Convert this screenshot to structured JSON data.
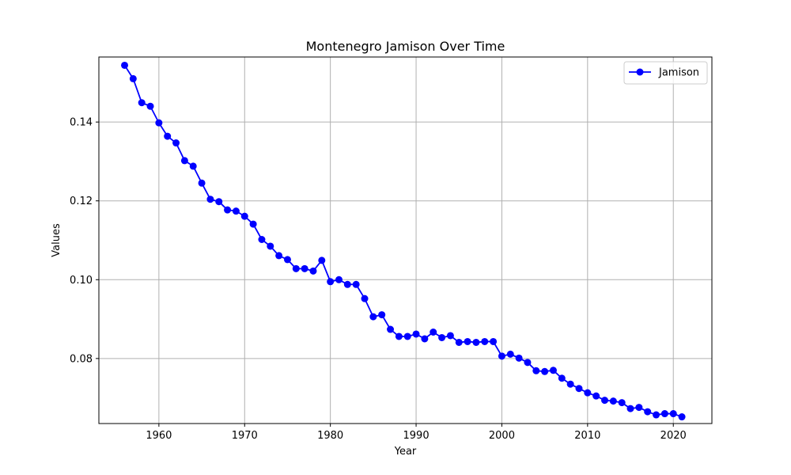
{
  "chart_data": {
    "type": "line",
    "title": "Montenegro Jamison Over Time",
    "xlabel": "Year",
    "ylabel": "Values",
    "xlim": [
      1953,
      2024.5
    ],
    "ylim": [
      0.0635,
      0.1565
    ],
    "xticks": [
      1960,
      1970,
      1980,
      1990,
      2000,
      2010,
      2020
    ],
    "yticks": [
      0.08,
      0.1,
      0.12,
      0.14
    ],
    "ytick_labels": [
      "0.08",
      "0.10",
      "0.12",
      "0.14"
    ],
    "grid": true,
    "legend_position": "top-right",
    "colors": {
      "series": "#0000ff",
      "grid": "#b0b0b0",
      "axes": "#000000"
    },
    "series": [
      {
        "name": "Jamison",
        "marker": "circle",
        "x": [
          1956,
          1957,
          1958,
          1959,
          1960,
          1961,
          1962,
          1963,
          1964,
          1965,
          1966,
          1967,
          1968,
          1969,
          1970,
          1971,
          1972,
          1973,
          1974,
          1975,
          1976,
          1977,
          1978,
          1979,
          1980,
          1981,
          1982,
          1983,
          1984,
          1985,
          1986,
          1987,
          1988,
          1989,
          1990,
          1991,
          1992,
          1993,
          1994,
          1995,
          1996,
          1997,
          1998,
          1999,
          2000,
          2001,
          2002,
          2003,
          2004,
          2005,
          2006,
          2007,
          2008,
          2009,
          2010,
          2011,
          2012,
          2013,
          2014,
          2015,
          2016,
          2017,
          2018,
          2019,
          2020,
          2021
        ],
        "y": [
          0.1544,
          0.151,
          0.1449,
          0.144,
          0.1398,
          0.1364,
          0.1347,
          0.1302,
          0.1288,
          0.1245,
          0.1204,
          0.1198,
          0.1177,
          0.1174,
          0.1161,
          0.1141,
          0.1102,
          0.1085,
          0.1061,
          0.1051,
          0.1028,
          0.1028,
          0.1022,
          0.1049,
          0.0995,
          0.1,
          0.0988,
          0.0988,
          0.0952,
          0.0906,
          0.0911,
          0.0874,
          0.0856,
          0.0856,
          0.0862,
          0.085,
          0.0867,
          0.0853,
          0.0858,
          0.0841,
          0.0843,
          0.0841,
          0.0843,
          0.0843,
          0.0806,
          0.0811,
          0.0801,
          0.079,
          0.0769,
          0.0767,
          0.077,
          0.075,
          0.0735,
          0.0724,
          0.0713,
          0.0705,
          0.0694,
          0.0692,
          0.0688,
          0.0673,
          0.0676,
          0.0665,
          0.0657,
          0.066,
          0.066,
          0.0652
        ]
      }
    ]
  }
}
